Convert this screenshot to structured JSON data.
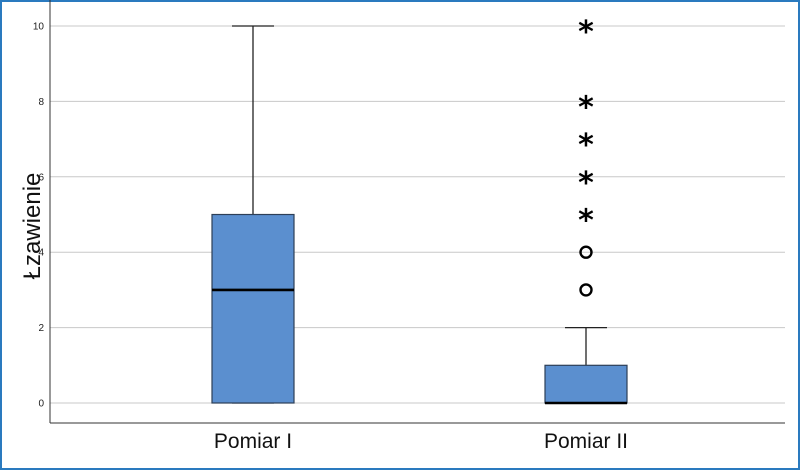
{
  "chart_data": {
    "type": "boxplot",
    "ylabel": "Łzawienie",
    "ylim": [
      0,
      10.5
    ],
    "yticks": [
      "0",
      "2",
      "4",
      "6",
      "8",
      "10"
    ],
    "grid": true,
    "categories": [
      "Pomiar I",
      "Pomiar II"
    ],
    "boxes": [
      {
        "category": "Pomiar I",
        "min": 0,
        "q1": 0,
        "median": 3,
        "q3": 5,
        "max": 10,
        "outliers": [],
        "extremes": []
      },
      {
        "category": "Pomiar II",
        "min": 0,
        "q1": 0,
        "median": 0,
        "q3": 1,
        "max": 2,
        "outliers": [
          3,
          4
        ],
        "extremes": [
          5,
          6,
          7,
          8,
          10
        ]
      }
    ],
    "box_color": "#5b8fcf",
    "border_color": "#2a7abf"
  }
}
